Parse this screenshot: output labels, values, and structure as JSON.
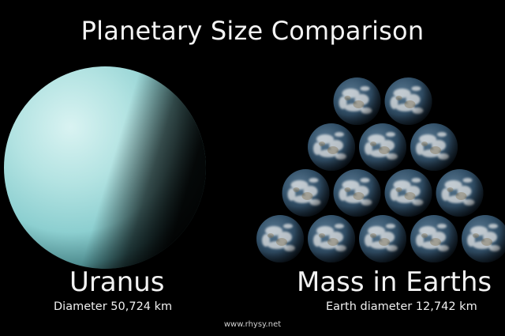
{
  "title": "Planetary Size Comparison",
  "uranus": {
    "name": "Uranus",
    "diameter_text": "Diameter  50,724 km"
  },
  "earths": {
    "name": "Mass in Earths",
    "diameter_text": "Earth diameter 12,742 km",
    "rows": [
      2,
      3,
      4,
      5
    ]
  },
  "credit": "www.rhysy.net",
  "colors": {
    "background": "#000000",
    "uranus": "#a9dede",
    "earth_ocean": "#2f4c66",
    "earth_cloud": "#d8dde0"
  }
}
